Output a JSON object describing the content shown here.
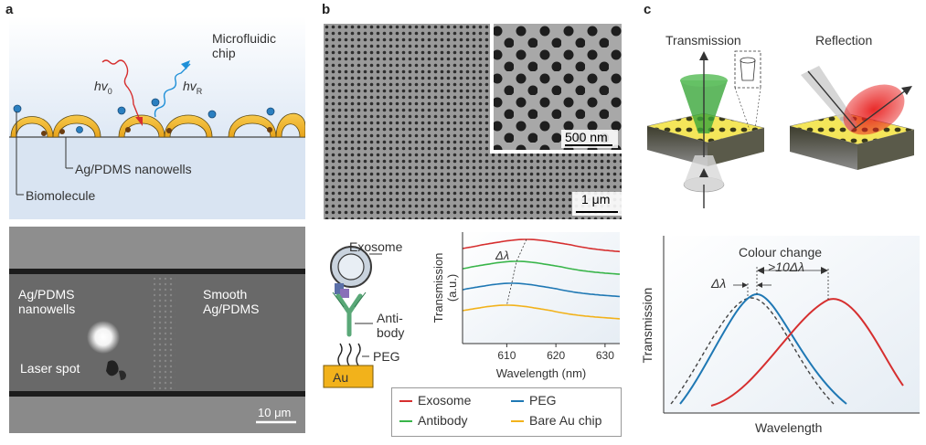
{
  "panel_a": {
    "letter": "a",
    "microfluidic_label": "Microfluidic\nchip",
    "hv0": "hv",
    "hv0_sub": "0",
    "hvR": "hv",
    "hvR_sub": "R",
    "nanowells_label": "Ag/PDMS nanowells",
    "biomolecule_label": "Biomolecule",
    "photo_nanowells": "Ag/PDMS\nnanowells",
    "photo_smooth": "Smooth\nAg/PDMS",
    "laser_spot": "Laser spot",
    "scale_bar": "10 μm"
  },
  "panel_b": {
    "letter": "b",
    "sem_scale": "1 μm",
    "inset_scale": "500 nm",
    "exosome": "Exosome",
    "antibody": "Anti-\nbody",
    "peg": "PEG",
    "au": "Au",
    "legend": [
      {
        "name": "Exosome",
        "color": "#d62f2f"
      },
      {
        "name": "PEG",
        "color": "#1f78b4"
      },
      {
        "name": "Antibody",
        "color": "#39b54a"
      },
      {
        "name": "Bare Au chip",
        "color": "#f2b21b"
      }
    ]
  },
  "panel_c": {
    "letter": "c",
    "transmission_title": "Transmission",
    "reflection_title": "Reflection",
    "colour_change": "Colour change",
    "gt10": ">10Δλ",
    "dl": "Δλ",
    "ylabel": "Transmission",
    "xlabel": "Wavelength"
  },
  "chart_data": [
    {
      "type": "line",
      "xlabel": "Wavelength (nm)",
      "ylabel": "Transmission\n(a.u.)",
      "xlim": [
        601,
        633
      ],
      "x_ticks": [
        610,
        620,
        630
      ],
      "annotation": "Δλ",
      "series": [
        {
          "name": "Exosome",
          "color": "#d62f2f",
          "offset": 3,
          "peak": 614
        },
        {
          "name": "Antibody",
          "color": "#39b54a",
          "offset": 2,
          "peak": 612
        },
        {
          "name": "PEG",
          "color": "#1f78b4",
          "offset": 1,
          "peak": 611
        },
        {
          "name": "Bare Au chip",
          "color": "#f2b21b",
          "offset": 0,
          "peak": 610
        }
      ]
    }
  ]
}
